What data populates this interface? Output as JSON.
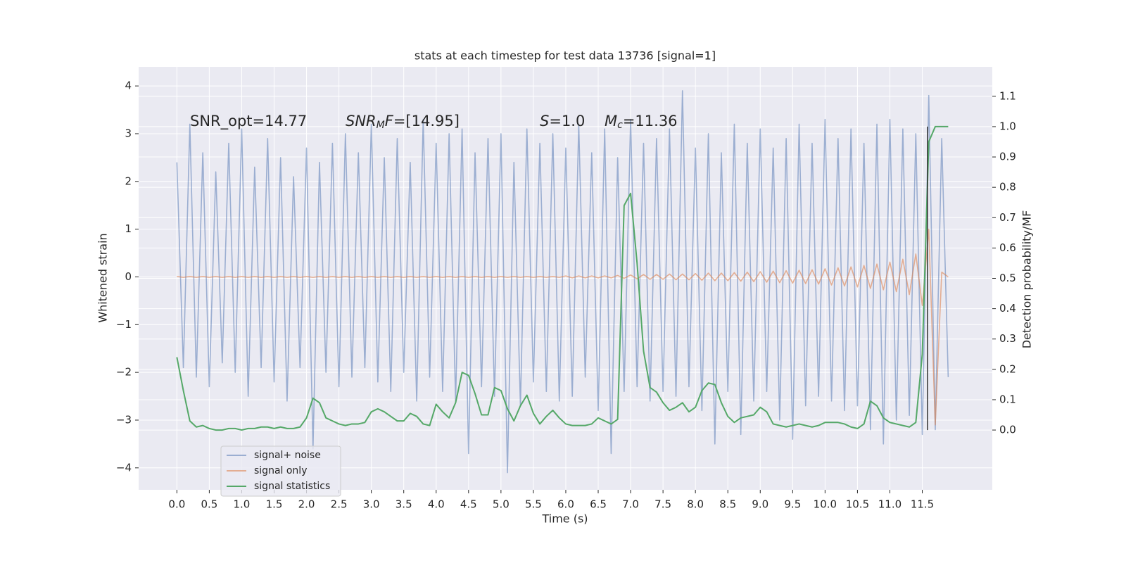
{
  "chart_data": {
    "type": "line",
    "title": "stats at each timestep for test data 13736 [signal=1]",
    "xlabel": "Time (s)",
    "ylabel": "Whitened strain",
    "y2label": "Detection probability/MF",
    "x": [
      0,
      0.1,
      0.2,
      0.3,
      0.4,
      0.5,
      0.6,
      0.7,
      0.8,
      0.9,
      1,
      1.1,
      1.2,
      1.3,
      1.4,
      1.5,
      1.6,
      1.7,
      1.8,
      1.9,
      2,
      2.1,
      2.2,
      2.3,
      2.4,
      2.5,
      2.6,
      2.7,
      2.8,
      2.9,
      3,
      3.1,
      3.2,
      3.3,
      3.4,
      3.5,
      3.6,
      3.7,
      3.8,
      3.9,
      4,
      4.1,
      4.2,
      4.3,
      4.4,
      4.5,
      4.6,
      4.7,
      4.8,
      4.9,
      5,
      5.1,
      5.2,
      5.3,
      5.4,
      5.5,
      5.6,
      5.7,
      5.8,
      5.9,
      6,
      6.1,
      6.2,
      6.3,
      6.4,
      6.5,
      6.6,
      6.7,
      6.8,
      6.9,
      7,
      7.1,
      7.2,
      7.3,
      7.4,
      7.5,
      7.6,
      7.7,
      7.8,
      7.9,
      8,
      8.1,
      8.2,
      8.3,
      8.4,
      8.5,
      8.6,
      8.7,
      8.8,
      8.9,
      9,
      9.1,
      9.2,
      9.3,
      9.4,
      9.5,
      9.6,
      9.7,
      9.8,
      9.9,
      10,
      10.1,
      10.2,
      10.3,
      10.4,
      10.5,
      10.6,
      10.7,
      10.8,
      10.9,
      11,
      11.1,
      11.2,
      11.3,
      11.4,
      11.5,
      11.6,
      11.7,
      11.8,
      11.9
    ],
    "series": [
      {
        "name": "signal+ noise",
        "color": "#4c72b0",
        "opacity": 0.5,
        "values": [
          2.4,
          -1.9,
          3.2,
          -2.1,
          2.6,
          -2.3,
          2.2,
          -1.8,
          2.8,
          -2.0,
          3.1,
          -2.5,
          2.3,
          -1.9,
          2.9,
          -2.2,
          2.5,
          -2.6,
          2.1,
          -1.9,
          2.7,
          -3.6,
          2.4,
          -2.0,
          2.8,
          -2.3,
          3.0,
          -2.1,
          2.6,
          -1.9,
          3.2,
          -2.2,
          2.5,
          -2.4,
          2.9,
          -2.0,
          2.4,
          -2.6,
          3.3,
          -2.1,
          2.8,
          -2.4,
          3.0,
          -2.6,
          3.1,
          -3.7,
          2.6,
          -2.3,
          2.9,
          -2.5,
          3.0,
          -4.1,
          2.4,
          -2.7,
          3.1,
          -2.2,
          2.8,
          -2.4,
          3.0,
          -2.6,
          2.7,
          -2.5,
          3.2,
          -2.1,
          2.6,
          -2.8,
          3.1,
          -3.7,
          2.5,
          -2.4,
          3.3,
          -2.3,
          2.8,
          -2.6,
          2.9,
          -2.4,
          3.1,
          -2.5,
          3.9,
          -2.3,
          2.7,
          -2.8,
          3.0,
          -3.5,
          2.6,
          -2.4,
          3.2,
          -3.3,
          2.8,
          -2.6,
          3.1,
          -2.4,
          2.7,
          -3.0,
          2.9,
          -3.4,
          3.2,
          -2.7,
          2.8,
          -2.5,
          3.3,
          -2.6,
          2.9,
          -2.8,
          3.1,
          -2.7,
          2.8,
          -3.2,
          3.2,
          -3.5,
          3.3,
          -3.0,
          3.1,
          -2.9,
          3.0,
          -3.3,
          3.8,
          -3.2,
          2.9,
          -2.1
        ]
      },
      {
        "name": "signal only",
        "color": "#dd8452",
        "opacity": 0.6,
        "values": [
          0.01,
          -0.01,
          0.01,
          -0.01,
          0.01,
          -0.01,
          0.01,
          -0.01,
          0.01,
          -0.01,
          0.01,
          -0.01,
          0.01,
          -0.01,
          0.01,
          -0.01,
          0.01,
          -0.01,
          0.01,
          -0.01,
          0.01,
          -0.01,
          0.01,
          -0.01,
          0.01,
          -0.01,
          0.01,
          -0.01,
          0.01,
          -0.01,
          0.01,
          -0.01,
          0.01,
          -0.01,
          0.01,
          -0.01,
          0.01,
          -0.01,
          0.01,
          -0.01,
          0.01,
          -0.01,
          0.01,
          -0.01,
          0.01,
          -0.01,
          0.01,
          -0.01,
          0.01,
          -0.01,
          0.01,
          -0.01,
          0.01,
          -0.01,
          0.01,
          -0.01,
          0.01,
          -0.01,
          0.01,
          -0.01,
          0.02,
          -0.02,
          0.02,
          -0.02,
          0.02,
          -0.02,
          0.02,
          -0.02,
          0.03,
          -0.03,
          0.04,
          -0.04,
          0.05,
          -0.05,
          0.05,
          -0.05,
          0.06,
          -0.06,
          0.06,
          -0.06,
          0.07,
          -0.07,
          0.08,
          -0.08,
          0.08,
          -0.08,
          0.09,
          -0.09,
          0.1,
          -0.1,
          0.11,
          -0.11,
          0.12,
          -0.12,
          0.13,
          -0.13,
          0.14,
          -0.14,
          0.15,
          -0.15,
          0.17,
          -0.17,
          0.19,
          -0.19,
          0.21,
          -0.21,
          0.24,
          -0.24,
          0.27,
          -0.27,
          0.31,
          -0.31,
          0.37,
          -0.37,
          0.48,
          -0.6,
          1.0,
          -3.1,
          0.1,
          0.0
        ]
      },
      {
        "name": "signal statistics",
        "color": "#55a868",
        "opacity": 1,
        "axis": "y2",
        "values": [
          0.24,
          0.13,
          0.03,
          0.01,
          0.015,
          0.005,
          0,
          0,
          0.005,
          0.005,
          0,
          0.005,
          0.005,
          0.01,
          0.01,
          0.005,
          0.01,
          0.005,
          0.005,
          0.01,
          0.04,
          0.105,
          0.09,
          0.04,
          0.03,
          0.02,
          0.015,
          0.02,
          0.02,
          0.025,
          0.06,
          0.07,
          0.06,
          0.045,
          0.03,
          0.03,
          0.055,
          0.045,
          0.02,
          0.015,
          0.085,
          0.06,
          0.04,
          0.09,
          0.19,
          0.18,
          0.12,
          0.05,
          0.05,
          0.14,
          0.13,
          0.07,
          0.03,
          0.08,
          0.115,
          0.055,
          0.02,
          0.045,
          0.065,
          0.04,
          0.02,
          0.015,
          0.015,
          0.015,
          0.02,
          0.04,
          0.03,
          0.02,
          0.035,
          0.74,
          0.78,
          0.55,
          0.26,
          0.14,
          0.125,
          0.09,
          0.065,
          0.075,
          0.09,
          0.06,
          0.075,
          0.13,
          0.155,
          0.15,
          0.09,
          0.045,
          0.025,
          0.04,
          0.045,
          0.05,
          0.075,
          0.06,
          0.02,
          0.015,
          0.01,
          0.015,
          0.02,
          0.015,
          0.01,
          0.015,
          0.025,
          0.025,
          0.025,
          0.02,
          0.01,
          0.005,
          0.02,
          0.095,
          0.08,
          0.04,
          0.025,
          0.02,
          0.015,
          0.01,
          0.025,
          0.25,
          0.95,
          1.0,
          1.0,
          1.0
        ]
      }
    ],
    "vline": {
      "x": 11.58,
      "y2": [
        0,
        1
      ],
      "color": "#333333"
    },
    "annotations": [
      {
        "text": "SNR_opt=14.77"
      },
      {
        "math": "SNR",
        "sub": "M",
        "math2": "F",
        "text": "=[14.95]"
      },
      {
        "math": "S",
        "text": "=1.0"
      },
      {
        "math": "M",
        "sub": "c",
        "text": "=11.36"
      }
    ],
    "xlim": [
      -0.59,
      12.58
    ],
    "xticks": [
      {
        "value": 0,
        "label": "0.0"
      },
      0.5,
      {
        "value": 1,
        "label": "1.0"
      },
      1.5,
      {
        "value": 2,
        "label": "2.0"
      },
      2.5,
      {
        "value": 3,
        "label": "3.0"
      },
      3.5,
      {
        "value": 4,
        "label": "4.0"
      },
      4.5,
      {
        "value": 5,
        "label": "5.0"
      },
      5.5,
      {
        "value": 6,
        "label": "6.0"
      },
      6.5,
      {
        "value": 7,
        "label": "7.0"
      },
      7.5,
      {
        "value": 8,
        "label": "8.0"
      },
      8.5,
      {
        "value": 9,
        "label": "9.0"
      },
      9.5,
      {
        "value": 10,
        "label": "10.0"
      },
      10.5,
      {
        "value": 11,
        "label": "11.0"
      },
      11.5
    ],
    "ylim": [
      -4.46,
      4.4
    ],
    "yticks": [
      {
        "value": -4,
        "label": "−4"
      },
      {
        "value": -3,
        "label": "−3"
      },
      {
        "value": -2,
        "label": "−2"
      },
      {
        "value": -1,
        "label": "−1"
      },
      0,
      1,
      2,
      3,
      4
    ],
    "y2lim": [
      -0.197,
      1.197
    ],
    "y2ticks": [
      {
        "value": 0,
        "label": "0.0"
      },
      0.1,
      0.2,
      0.3,
      0.4,
      0.5,
      0.6,
      0.7,
      0.8,
      0.9,
      {
        "value": 1,
        "label": "1.0"
      },
      1.1
    ],
    "grid": true,
    "legend": "lower left"
  }
}
